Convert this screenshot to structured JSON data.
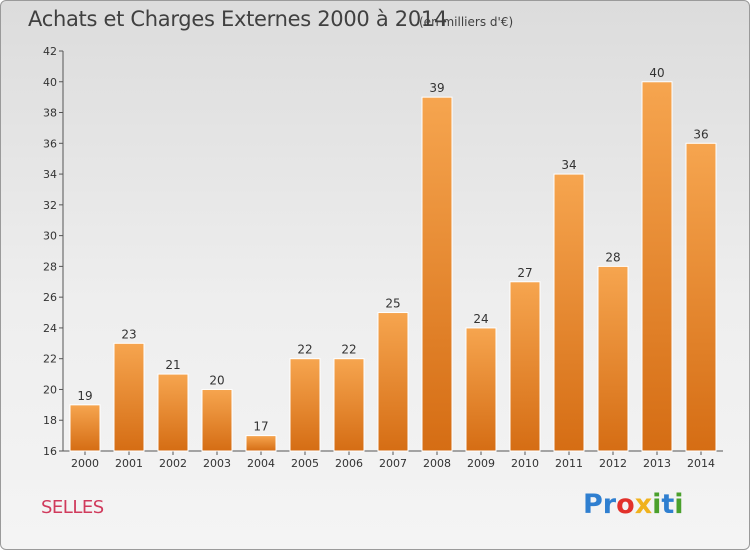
{
  "header": {
    "title": "Achats et Charges Externes 2000 à 2014",
    "unit": "(en milliers d'€)"
  },
  "footer": {
    "commune": "SELLES",
    "logo_letters": [
      "P",
      "r",
      "o",
      "x",
      "i",
      "t",
      "i"
    ]
  },
  "colors": {
    "bar_top": "#f6a54f",
    "bar_bottom": "#d56d14",
    "logo": [
      "#2f7fd0",
      "#2f7fd0",
      "#e2312b",
      "#f0b21d",
      "#4aa02c",
      "#2f7fd0",
      "#4aa02c"
    ]
  },
  "chart_data": {
    "type": "bar",
    "categories": [
      "2000",
      "2001",
      "2002",
      "2003",
      "2004",
      "2005",
      "2006",
      "2007",
      "2008",
      "2009",
      "2010",
      "2011",
      "2012",
      "2013",
      "2014"
    ],
    "values": [
      19,
      23,
      21,
      20,
      17,
      22,
      22,
      25,
      39,
      24,
      27,
      34,
      28,
      40,
      36
    ],
    "ylim": [
      16,
      42
    ],
    "yticks": [
      16,
      18,
      20,
      22,
      24,
      26,
      28,
      30,
      32,
      34,
      36,
      38,
      40,
      42
    ],
    "grid": false
  }
}
